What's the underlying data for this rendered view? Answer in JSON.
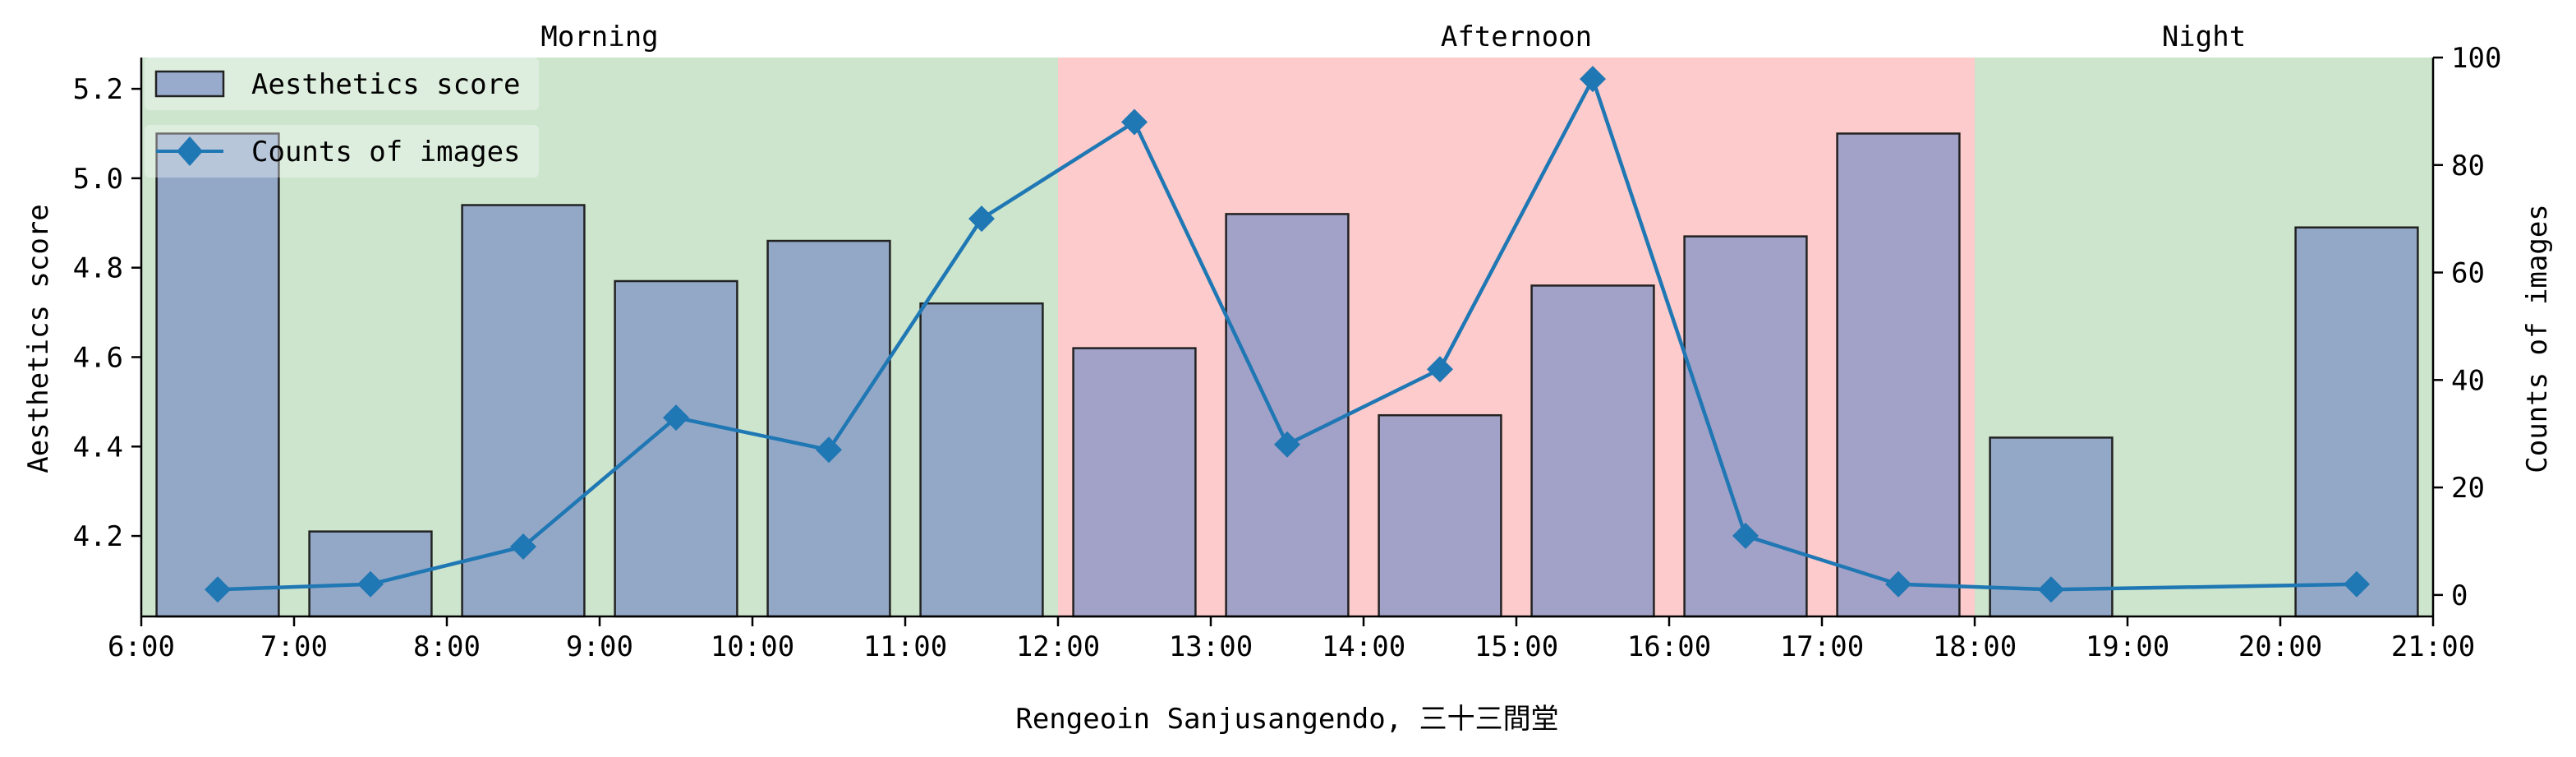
{
  "chart_data": {
    "type": "bar",
    "xlabel": "Rengeoin Sanjusangendo, 三十三間堂",
    "ylabel_left": "Aesthetics score",
    "ylabel_right": "Counts of images",
    "xlim": [
      6,
      21
    ],
    "ylim_left": [
      4.02,
      5.27
    ],
    "ylim_right": [
      -4,
      100
    ],
    "x_ticks": [
      {
        "value": 6,
        "label": "6:00"
      },
      {
        "value": 7,
        "label": "7:00"
      },
      {
        "value": 8,
        "label": "8:00"
      },
      {
        "value": 9,
        "label": "9:00"
      },
      {
        "value": 10,
        "label": "10:00"
      },
      {
        "value": 11,
        "label": "11:00"
      },
      {
        "value": 12,
        "label": "12:00"
      },
      {
        "value": 13,
        "label": "13:00"
      },
      {
        "value": 14,
        "label": "14:00"
      },
      {
        "value": 15,
        "label": "15:00"
      },
      {
        "value": 16,
        "label": "16:00"
      },
      {
        "value": 17,
        "label": "17:00"
      },
      {
        "value": 18,
        "label": "18:00"
      },
      {
        "value": 19,
        "label": "19:00"
      },
      {
        "value": 20,
        "label": "20:00"
      },
      {
        "value": 21,
        "label": "21:00"
      }
    ],
    "y_ticks_left": [
      {
        "value": 4.2,
        "label": "4.2"
      },
      {
        "value": 4.4,
        "label": "4.4"
      },
      {
        "value": 4.6,
        "label": "4.6"
      },
      {
        "value": 4.8,
        "label": "4.8"
      },
      {
        "value": 5.0,
        "label": "5.0"
      },
      {
        "value": 5.2,
        "label": "5.2"
      }
    ],
    "y_ticks_right": [
      {
        "value": 0,
        "label": "0"
      },
      {
        "value": 20,
        "label": "20"
      },
      {
        "value": 40,
        "label": "40"
      },
      {
        "value": 60,
        "label": "60"
      },
      {
        "value": 80,
        "label": "80"
      },
      {
        "value": 100,
        "label": "100"
      }
    ],
    "periods": [
      {
        "label": "Morning",
        "start": 6,
        "end": 12,
        "color": "#cde5cd"
      },
      {
        "label": "Afternoon",
        "start": 12,
        "end": 18,
        "color": "#fdcbcb"
      },
      {
        "label": "Night",
        "start": 18,
        "end": 21,
        "color": "#cde5cd"
      }
    ],
    "series": [
      {
        "name": "Aesthetics score",
        "kind": "bar",
        "axis": "left",
        "color": "#7b8fc4",
        "x": [
          6.5,
          7.5,
          8.5,
          9.5,
          10.5,
          11.5,
          12.5,
          13.5,
          14.5,
          15.5,
          16.5,
          17.5,
          18.5,
          20.5
        ],
        "values": [
          5.1,
          4.21,
          4.94,
          4.77,
          4.86,
          4.72,
          4.62,
          4.92,
          4.47,
          4.76,
          4.87,
          5.1,
          4.42,
          4.89
        ]
      },
      {
        "name": "Counts of images",
        "kind": "line",
        "axis": "right",
        "color": "#1f77b4",
        "marker": "diamond",
        "x": [
          6.5,
          7.5,
          8.5,
          9.5,
          10.5,
          11.5,
          12.5,
          13.5,
          14.5,
          15.5,
          16.5,
          17.5,
          18.5,
          20.5
        ],
        "values": [
          1,
          2,
          9,
          33,
          27,
          70,
          88,
          28,
          42,
          96,
          11,
          2,
          1,
          2
        ]
      }
    ],
    "legend": "top-left",
    "grid": false
  }
}
